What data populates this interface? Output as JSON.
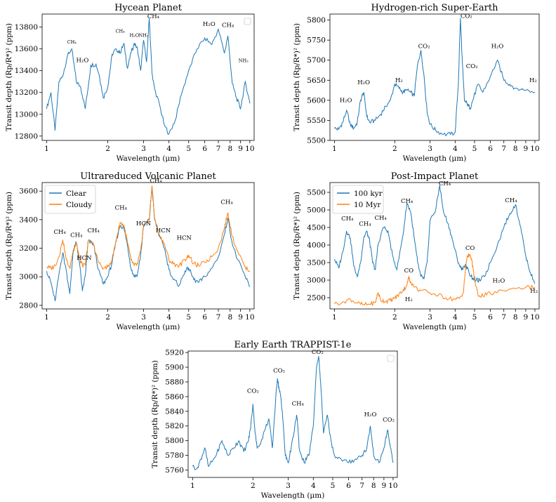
{
  "figure": {
    "xlabel": "Wavelength (μm)",
    "ylabel": "Transit depth (Rp/R*)² (ppm)"
  },
  "chart_data": [
    {
      "type": "line",
      "title": "Hycean Planet",
      "xlabel": "Wavelength (μm)",
      "ylabel": "Transit depth (Rp/R*)² (ppm)",
      "xscale": "log",
      "xlim": [
        0.95,
        10.5
      ],
      "ylim": [
        12760,
        13920
      ],
      "xticks": [
        1,
        2,
        3,
        4,
        5,
        6,
        7,
        8,
        9,
        10
      ],
      "yticks": [
        12800,
        13000,
        13200,
        13400,
        13600,
        13800
      ],
      "legend": {
        "placement": "top-right",
        "entries": []
      },
      "series": [
        {
          "color": "#1f77b4",
          "x": [
            1.0,
            1.05,
            1.1,
            1.15,
            1.2,
            1.27,
            1.33,
            1.4,
            1.47,
            1.55,
            1.65,
            1.75,
            1.82,
            1.9,
            2.0,
            2.1,
            2.2,
            2.3,
            2.4,
            2.5,
            2.6,
            2.7,
            2.8,
            2.9,
            3.0,
            3.1,
            3.2,
            3.3,
            3.4,
            3.6,
            3.8,
            4.0,
            4.3,
            4.6,
            5.0,
            5.5,
            6.0,
            6.5,
            7.0,
            7.5,
            7.8,
            8.2,
            8.6,
            9.0,
            9.5,
            10.0
          ],
          "y": [
            13050,
            13200,
            12850,
            13300,
            13350,
            13550,
            13600,
            13300,
            13250,
            13050,
            13450,
            13460,
            13350,
            13150,
            13250,
            13550,
            13600,
            13560,
            13650,
            13420,
            13560,
            13650,
            13600,
            13400,
            13680,
            13480,
            13880,
            13380,
            13230,
            13080,
            12900,
            12820,
            12950,
            13180,
            13400,
            13600,
            13700,
            13640,
            13780,
            13560,
            13720,
            13280,
            13150,
            13050,
            13300,
            13100
          ]
        }
      ],
      "annotations": [
        {
          "text": "CH₄",
          "x": 1.33,
          "y": 13650
        },
        {
          "text": "H₂O",
          "x": 1.5,
          "y": 13480
        },
        {
          "text": "CH₄",
          "x": 2.3,
          "y": 13750
        },
        {
          "text": "H₂O",
          "x": 2.7,
          "y": 13710
        },
        {
          "text": "NH₃",
          "x": 3.0,
          "y": 13710
        },
        {
          "text": "CH₄",
          "x": 3.35,
          "y": 13880
        },
        {
          "text": "H₂O",
          "x": 6.3,
          "y": 13810
        },
        {
          "text": "CH₄",
          "x": 7.8,
          "y": 13800
        },
        {
          "text": "NH₃",
          "x": 9.3,
          "y": 13480
        }
      ]
    },
    {
      "type": "line",
      "title": "Hydrogen-rich Super-Earth",
      "xlabel": "Wavelength (μm)",
      "ylabel": "Transit depth (Rp/R*)² (ppm)",
      "xscale": "log",
      "xlim": [
        0.95,
        10.5
      ],
      "ylim": [
        5500,
        5815
      ],
      "xticks": [
        1,
        2,
        3,
        4,
        5,
        6,
        7,
        8,
        9,
        10
      ],
      "yticks": [
        5500,
        5550,
        5600,
        5650,
        5700,
        5750,
        5800
      ],
      "series": [
        {
          "color": "#1f77b4",
          "x": [
            1.0,
            1.05,
            1.1,
            1.15,
            1.2,
            1.25,
            1.3,
            1.35,
            1.4,
            1.45,
            1.5,
            1.6,
            1.7,
            1.8,
            1.9,
            2.0,
            2.1,
            2.2,
            2.3,
            2.4,
            2.5,
            2.6,
            2.7,
            2.8,
            2.9,
            3.0,
            3.2,
            3.5,
            3.8,
            4.0,
            4.15,
            4.25,
            4.35,
            4.45,
            4.6,
            4.75,
            4.9,
            5.2,
            5.5,
            6.0,
            6.5,
            7.0,
            7.5,
            8.0,
            9.0,
            10.0
          ],
          "y": [
            5530,
            5528,
            5545,
            5575,
            5540,
            5530,
            5545,
            5600,
            5620,
            5560,
            5545,
            5550,
            5565,
            5585,
            5600,
            5640,
            5630,
            5620,
            5625,
            5620,
            5610,
            5690,
            5725,
            5660,
            5570,
            5540,
            5525,
            5515,
            5515,
            5520,
            5640,
            5805,
            5690,
            5600,
            5590,
            5580,
            5600,
            5640,
            5620,
            5660,
            5700,
            5650,
            5640,
            5630,
            5625,
            5620
          ]
        }
      ],
      "annotations": [
        {
          "text": "H₂O",
          "x": 1.14,
          "y": 5595
        },
        {
          "text": "H₂O",
          "x": 1.4,
          "y": 5640
        },
        {
          "text": "H₂",
          "x": 2.1,
          "y": 5645
        },
        {
          "text": "CO₂",
          "x": 2.8,
          "y": 5730
        },
        {
          "text": "CO₂",
          "x": 4.55,
          "y": 5805
        },
        {
          "text": "CO₂",
          "x": 4.85,
          "y": 5680
        },
        {
          "text": "H₂O",
          "x": 6.5,
          "y": 5730
        },
        {
          "text": "H₂",
          "x": 9.8,
          "y": 5645
        }
      ]
    },
    {
      "type": "line",
      "title": "Ultrareduced Volcanic Planet",
      "xlabel": "Wavelength (μm)",
      "ylabel": "Transit depth (Rp/R*)² (ppm)",
      "xscale": "log",
      "xlim": [
        0.95,
        10.5
      ],
      "ylim": [
        2775,
        3660
      ],
      "xticks": [
        1,
        2,
        3,
        4,
        5,
        6,
        7,
        8,
        9,
        10
      ],
      "yticks": [
        2800,
        3000,
        3200,
        3400,
        3600
      ],
      "legend": {
        "placement": "top-left",
        "entries": [
          "Clear",
          "Cloudy"
        ]
      },
      "series": [
        {
          "name": "Clear",
          "color": "#1f77b4",
          "x": [
            1.0,
            1.05,
            1.1,
            1.15,
            1.2,
            1.25,
            1.3,
            1.35,
            1.4,
            1.45,
            1.5,
            1.55,
            1.6,
            1.7,
            1.8,
            1.9,
            2.0,
            2.1,
            2.2,
            2.3,
            2.4,
            2.5,
            2.6,
            2.7,
            2.8,
            2.9,
            3.0,
            3.2,
            3.3,
            3.4,
            3.6,
            3.8,
            4.0,
            4.2,
            4.5,
            4.8,
            5.0,
            5.3,
            5.6,
            6.0,
            6.5,
            7.0,
            7.5,
            7.8,
            8.2,
            8.7,
            9.5,
            10.0
          ],
          "y": [
            3040,
            2960,
            2830,
            3020,
            3170,
            3040,
            2880,
            3180,
            3240,
            3100,
            2900,
            3010,
            3250,
            3230,
            3050,
            2950,
            3000,
            3100,
            3250,
            3360,
            3340,
            3220,
            3060,
            3000,
            3020,
            3150,
            3350,
            3400,
            3630,
            3400,
            3280,
            3200,
            3050,
            2980,
            2940,
            3040,
            3060,
            2980,
            2960,
            3000,
            3060,
            3140,
            3300,
            3410,
            3230,
            3120,
            3000,
            2930
          ]
        },
        {
          "name": "Cloudy",
          "color": "#ff7f0e",
          "x": [
            1.0,
            1.05,
            1.1,
            1.15,
            1.2,
            1.25,
            1.3,
            1.35,
            1.4,
            1.45,
            1.5,
            1.55,
            1.6,
            1.7,
            1.8,
            1.9,
            2.0,
            2.1,
            2.2,
            2.3,
            2.4,
            2.5,
            2.6,
            2.7,
            2.8,
            2.9,
            3.0,
            3.2,
            3.3,
            3.4,
            3.6,
            3.8,
            4.0,
            4.2,
            4.5,
            4.8,
            5.0,
            5.3,
            5.6,
            6.0,
            6.5,
            7.0,
            7.5,
            7.8,
            8.2,
            8.7,
            9.5,
            10.0
          ],
          "y": [
            3070,
            3060,
            3080,
            3140,
            3260,
            3120,
            3060,
            3180,
            3240,
            3130,
            3080,
            3080,
            3250,
            3230,
            3100,
            3060,
            3070,
            3120,
            3260,
            3380,
            3360,
            3240,
            3120,
            3080,
            3090,
            3180,
            3360,
            3400,
            3640,
            3410,
            3290,
            3230,
            3120,
            3090,
            3080,
            3120,
            3150,
            3090,
            3080,
            3100,
            3140,
            3200,
            3340,
            3450,
            3280,
            3180,
            3070,
            3040
          ]
        }
      ],
      "annotations": [
        {
          "text": "CH₄",
          "x": 1.16,
          "y": 3300
        },
        {
          "text": "CH₄",
          "x": 1.4,
          "y": 3280
        },
        {
          "text": "HCN",
          "x": 1.53,
          "y": 3120
        },
        {
          "text": "CH₄",
          "x": 1.7,
          "y": 3310
        },
        {
          "text": "CH₄",
          "x": 2.32,
          "y": 3470
        },
        {
          "text": "HCN",
          "x": 3.0,
          "y": 3360
        },
        {
          "text": "CH₄",
          "x": 3.45,
          "y": 3660
        },
        {
          "text": "HCN",
          "x": 3.75,
          "y": 3310
        },
        {
          "text": "HCN",
          "x": 4.75,
          "y": 3260
        },
        {
          "text": "CH₄",
          "x": 7.7,
          "y": 3510
        }
      ]
    },
    {
      "type": "line",
      "title": "Post-Impact Planet",
      "xlabel": "Wavelength (μm)",
      "ylabel": "Transit depth (Rp/R*)² (ppm)",
      "xscale": "log",
      "xlim": [
        0.95,
        10.5
      ],
      "ylim": [
        2180,
        5780
      ],
      "xticks": [
        1,
        2,
        3,
        4,
        5,
        6,
        7,
        8,
        9,
        10
      ],
      "yticks": [
        2500,
        3000,
        3500,
        4000,
        4500,
        5000,
        5500
      ],
      "legend": {
        "placement": "top-left",
        "entries": [
          "100 kyr",
          "10 Myr"
        ]
      },
      "series": [
        {
          "name": "100 kyr",
          "color": "#1f77b4",
          "x": [
            1.0,
            1.05,
            1.1,
            1.15,
            1.2,
            1.25,
            1.3,
            1.35,
            1.4,
            1.45,
            1.5,
            1.55,
            1.6,
            1.65,
            1.75,
            1.85,
            1.95,
            2.05,
            2.2,
            2.3,
            2.4,
            2.5,
            2.6,
            2.7,
            2.8,
            2.9,
            3.0,
            3.2,
            3.35,
            3.5,
            3.7,
            3.9,
            4.1,
            4.3,
            4.5,
            4.7,
            4.9,
            5.1,
            5.3,
            5.6,
            6.0,
            6.5,
            7.0,
            7.5,
            8.0,
            8.5,
            9.0,
            9.5,
            10.0
          ],
          "y": [
            3600,
            3350,
            3800,
            4400,
            4200,
            3400,
            3100,
            3500,
            4200,
            4400,
            4100,
            3500,
            3300,
            4000,
            4500,
            4400,
            3700,
            3300,
            4300,
            5200,
            4950,
            4200,
            3500,
            3100,
            3050,
            3500,
            4700,
            5000,
            5700,
            4950,
            4600,
            4100,
            3600,
            3300,
            3450,
            3200,
            3050,
            3000,
            3000,
            3100,
            3500,
            4000,
            4500,
            4900,
            5150,
            4500,
            3700,
            3200,
            2900
          ]
        },
        {
          "name": "10 Myr",
          "color": "#ff7f0e",
          "x": [
            1.0,
            1.1,
            1.2,
            1.3,
            1.4,
            1.5,
            1.6,
            1.65,
            1.7,
            1.8,
            1.9,
            2.0,
            2.1,
            2.2,
            2.3,
            2.35,
            2.4,
            2.5,
            2.7,
            3.0,
            3.3,
            3.6,
            4.0,
            4.2,
            4.4,
            4.5,
            4.6,
            4.7,
            4.8,
            4.9,
            5.0,
            5.2,
            5.5,
            6.0,
            7.0,
            8.0,
            9.0,
            10.0
          ],
          "y": [
            2320,
            2380,
            2460,
            2340,
            2300,
            2310,
            2360,
            2650,
            2430,
            2400,
            2420,
            2480,
            2600,
            2720,
            2850,
            3100,
            2950,
            2800,
            2700,
            2640,
            2570,
            2500,
            2450,
            2480,
            2650,
            3300,
            3700,
            3700,
            3650,
            3400,
            3000,
            2580,
            2560,
            2620,
            2700,
            2760,
            2790,
            2800
          ]
        }
      ],
      "annotations": [
        {
          "text": "CH₄",
          "x": 1.16,
          "y": 4700
        },
        {
          "text": "CH₄",
          "x": 1.42,
          "y": 4550
        },
        {
          "text": "CH₄",
          "x": 1.7,
          "y": 4720
        },
        {
          "text": "CH₄",
          "x": 2.3,
          "y": 5200
        },
        {
          "text": "CH₄",
          "x": 3.55,
          "y": 5700
        },
        {
          "text": "CO",
          "x": 2.35,
          "y": 3220
        },
        {
          "text": "H₂",
          "x": 2.35,
          "y": 2400
        },
        {
          "text": "CO",
          "x": 4.75,
          "y": 3860
        },
        {
          "text": "H₂O",
          "x": 6.6,
          "y": 2930
        },
        {
          "text": "CH₄",
          "x": 7.6,
          "y": 5220
        },
        {
          "text": "H₂",
          "x": 9.9,
          "y": 2640
        }
      ]
    },
    {
      "type": "line",
      "title": "Early Earth TRAPPIST-1e",
      "xlabel": "Wavelength (μm)",
      "ylabel": "Transit depth (Rp/R*)² (ppm)",
      "xscale": "log",
      "xlim": [
        0.95,
        10.5
      ],
      "ylim": [
        5750,
        5922
      ],
      "xticks": [
        1,
        2,
        3,
        4,
        5,
        6,
        7,
        8,
        9,
        10
      ],
      "yticks": [
        5760,
        5780,
        5800,
        5820,
        5840,
        5860,
        5880,
        5900,
        5920
      ],
      "legend": {
        "placement": "top-right",
        "entries": []
      },
      "series": [
        {
          "color": "#1f77b4",
          "x": [
            1.0,
            1.05,
            1.1,
            1.15,
            1.2,
            1.3,
            1.4,
            1.5,
            1.6,
            1.7,
            1.8,
            1.9,
            1.95,
            2.0,
            2.05,
            2.1,
            2.2,
            2.3,
            2.4,
            2.5,
            2.6,
            2.65,
            2.7,
            2.75,
            2.8,
            2.9,
            3.0,
            3.1,
            3.2,
            3.3,
            3.35,
            3.4,
            3.6,
            3.8,
            4.0,
            4.15,
            4.25,
            4.35,
            4.5,
            4.7,
            4.9,
            5.1,
            5.5,
            6.0,
            6.5,
            7.0,
            7.4,
            7.7,
            8.0,
            8.5,
            9.0,
            9.4,
            9.7,
            10.0
          ],
          "y": [
            5765,
            5762,
            5775,
            5790,
            5765,
            5778,
            5800,
            5780,
            5790,
            5800,
            5785,
            5800,
            5820,
            5850,
            5810,
            5790,
            5800,
            5815,
            5830,
            5790,
            5860,
            5885,
            5870,
            5860,
            5840,
            5780,
            5770,
            5790,
            5810,
            5835,
            5820,
            5790,
            5770,
            5780,
            5820,
            5900,
            5915,
            5880,
            5810,
            5835,
            5800,
            5780,
            5775,
            5770,
            5775,
            5780,
            5790,
            5820,
            5780,
            5770,
            5790,
            5815,
            5790,
            5770
          ]
        }
      ],
      "annotations": [
        {
          "text": "CO₂",
          "x": 2.0,
          "y": 5865
        },
        {
          "text": "CO₂",
          "x": 2.7,
          "y": 5893
        },
        {
          "text": "CH₄",
          "x": 3.35,
          "y": 5848
        },
        {
          "text": "CO₂",
          "x": 4.2,
          "y": 5918
        },
        {
          "text": "H₂O",
          "x": 7.7,
          "y": 5833
        },
        {
          "text": "CO₂",
          "x": 9.5,
          "y": 5826
        }
      ]
    }
  ]
}
